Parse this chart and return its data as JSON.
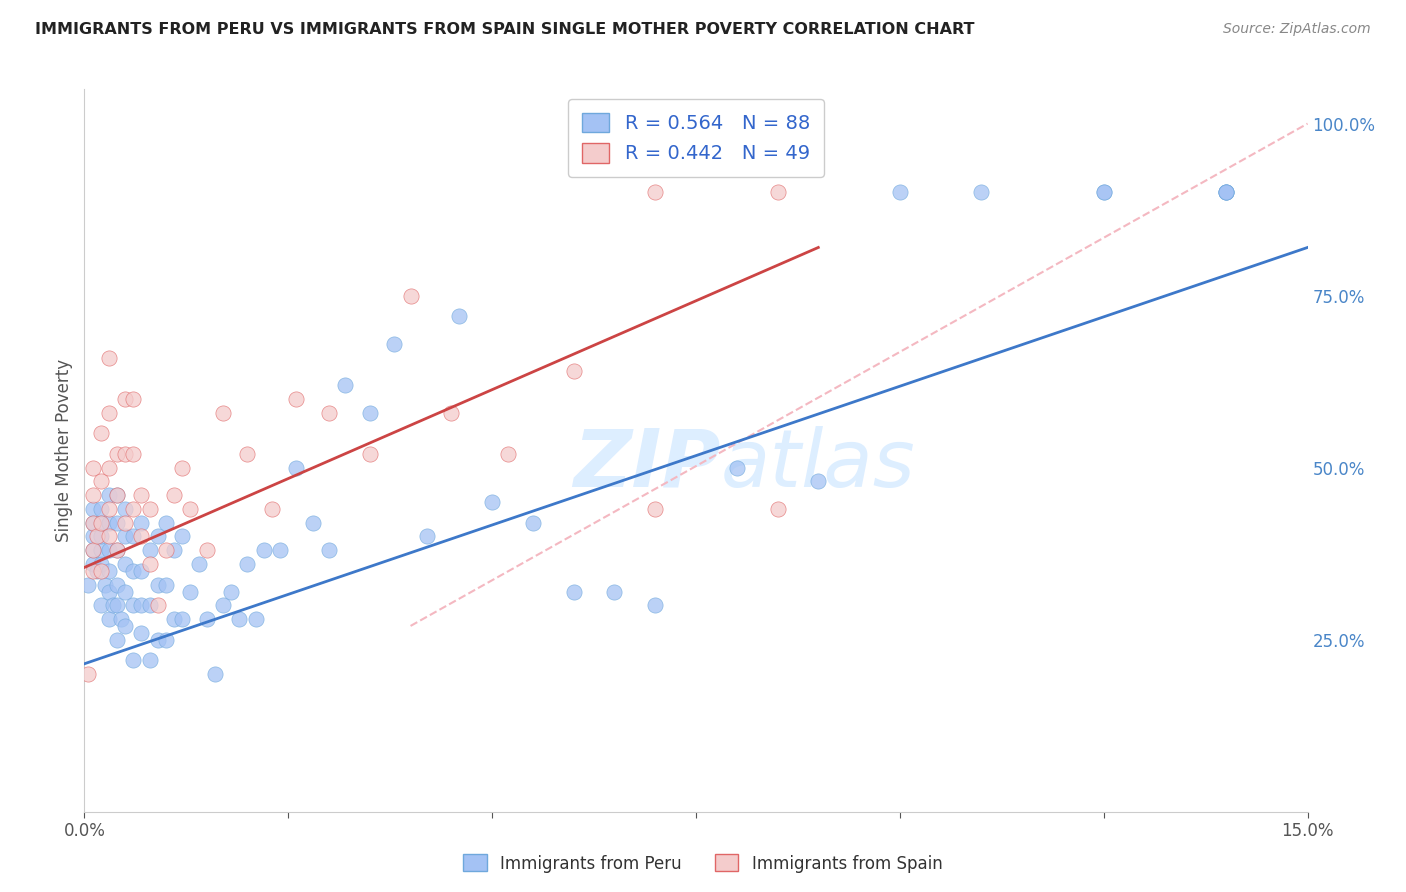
{
  "title": "IMMIGRANTS FROM PERU VS IMMIGRANTS FROM SPAIN SINGLE MOTHER POVERTY CORRELATION CHART",
  "source": "Source: ZipAtlas.com",
  "ylabel": "Single Mother Poverty",
  "xlim": [
    0.0,
    0.15
  ],
  "ylim": [
    0.0,
    1.05
  ],
  "yticks_right": [
    0.25,
    0.5,
    0.75,
    1.0
  ],
  "ytick_labels_right": [
    "25.0%",
    "50.0%",
    "75.0%",
    "100.0%"
  ],
  "peru_R": 0.564,
  "peru_N": 88,
  "spain_R": 0.442,
  "spain_N": 49,
  "peru_color": "#a4c2f4",
  "peru_edge_color": "#6fa8dc",
  "spain_color": "#f4cccc",
  "spain_edge_color": "#e06666",
  "peru_line_color": "#3d78c9",
  "spain_line_color": "#cc4444",
  "diagonal_color": "#f4b8c1",
  "watermark_color": "#ddeeff",
  "legend_peru_label": "Immigrants from Peru",
  "legend_spain_label": "Immigrants from Spain",
  "peru_line_x0": 0.0,
  "peru_line_y0": 0.215,
  "peru_line_x1": 0.15,
  "peru_line_y1": 0.82,
  "spain_line_x0": 0.0,
  "spain_line_y0": 0.355,
  "spain_line_x1": 0.09,
  "spain_line_y1": 0.82,
  "peru_x": [
    0.0005,
    0.001,
    0.001,
    0.001,
    0.001,
    0.001,
    0.0015,
    0.002,
    0.002,
    0.002,
    0.002,
    0.002,
    0.002,
    0.0025,
    0.003,
    0.003,
    0.003,
    0.003,
    0.003,
    0.003,
    0.0035,
    0.004,
    0.004,
    0.004,
    0.004,
    0.004,
    0.004,
    0.0045,
    0.005,
    0.005,
    0.005,
    0.005,
    0.005,
    0.006,
    0.006,
    0.006,
    0.006,
    0.007,
    0.007,
    0.007,
    0.007,
    0.008,
    0.008,
    0.008,
    0.009,
    0.009,
    0.009,
    0.01,
    0.01,
    0.01,
    0.011,
    0.011,
    0.012,
    0.012,
    0.013,
    0.014,
    0.015,
    0.016,
    0.017,
    0.018,
    0.019,
    0.02,
    0.021,
    0.022,
    0.024,
    0.026,
    0.028,
    0.03,
    0.032,
    0.035,
    0.038,
    0.042,
    0.046,
    0.05,
    0.055,
    0.06,
    0.065,
    0.07,
    0.08,
    0.09,
    0.1,
    0.11,
    0.125,
    0.125,
    0.14,
    0.14,
    0.14,
    0.14
  ],
  "peru_y": [
    0.33,
    0.38,
    0.4,
    0.42,
    0.36,
    0.44,
    0.35,
    0.3,
    0.36,
    0.38,
    0.4,
    0.42,
    0.44,
    0.33,
    0.28,
    0.32,
    0.35,
    0.38,
    0.42,
    0.46,
    0.3,
    0.25,
    0.3,
    0.33,
    0.38,
    0.42,
    0.46,
    0.28,
    0.27,
    0.32,
    0.36,
    0.4,
    0.44,
    0.22,
    0.3,
    0.35,
    0.4,
    0.26,
    0.3,
    0.35,
    0.42,
    0.22,
    0.3,
    0.38,
    0.25,
    0.33,
    0.4,
    0.25,
    0.33,
    0.42,
    0.28,
    0.38,
    0.28,
    0.4,
    0.32,
    0.36,
    0.28,
    0.2,
    0.3,
    0.32,
    0.28,
    0.36,
    0.28,
    0.38,
    0.38,
    0.5,
    0.42,
    0.38,
    0.62,
    0.58,
    0.68,
    0.4,
    0.72,
    0.45,
    0.42,
    0.32,
    0.32,
    0.3,
    0.5,
    0.48,
    0.9,
    0.9,
    0.9,
    0.9,
    0.9,
    0.9,
    0.9,
    0.9
  ],
  "spain_x": [
    0.0005,
    0.001,
    0.001,
    0.001,
    0.001,
    0.001,
    0.0015,
    0.002,
    0.002,
    0.002,
    0.002,
    0.003,
    0.003,
    0.003,
    0.003,
    0.003,
    0.004,
    0.004,
    0.004,
    0.005,
    0.005,
    0.005,
    0.006,
    0.006,
    0.006,
    0.007,
    0.007,
    0.008,
    0.008,
    0.009,
    0.01,
    0.011,
    0.012,
    0.013,
    0.015,
    0.017,
    0.02,
    0.023,
    0.026,
    0.03,
    0.035,
    0.04,
    0.045,
    0.052,
    0.06,
    0.07,
    0.07,
    0.085,
    0.085
  ],
  "spain_y": [
    0.2,
    0.35,
    0.38,
    0.42,
    0.46,
    0.5,
    0.4,
    0.35,
    0.42,
    0.48,
    0.55,
    0.4,
    0.44,
    0.5,
    0.58,
    0.66,
    0.38,
    0.46,
    0.52,
    0.42,
    0.52,
    0.6,
    0.44,
    0.52,
    0.6,
    0.4,
    0.46,
    0.36,
    0.44,
    0.3,
    0.38,
    0.46,
    0.5,
    0.44,
    0.38,
    0.58,
    0.52,
    0.44,
    0.6,
    0.58,
    0.52,
    0.75,
    0.58,
    0.52,
    0.64,
    0.44,
    0.9,
    0.44,
    0.9
  ]
}
